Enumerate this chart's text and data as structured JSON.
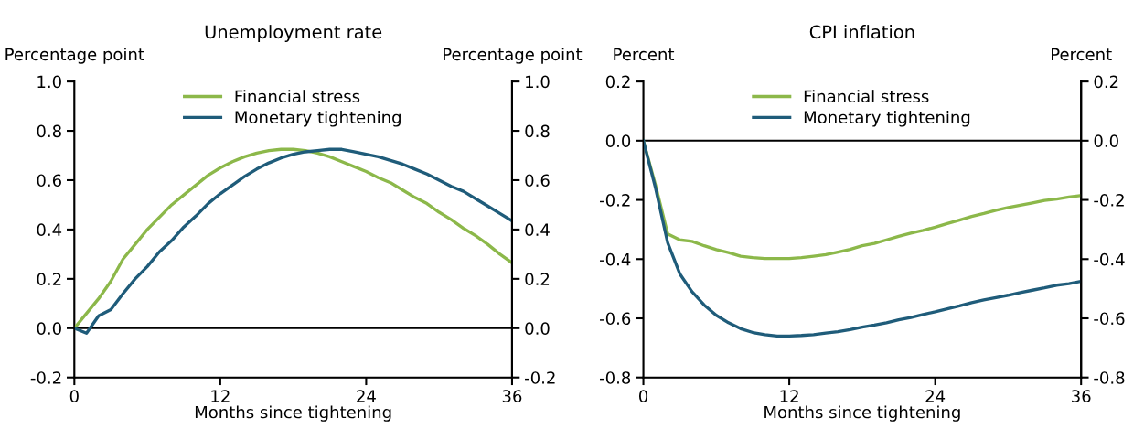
{
  "chart_data": [
    {
      "type": "line",
      "title": "Unemployment rate",
      "ylabel": "Percentage point",
      "y2label": "Percentage point",
      "xlabel": "Months since tightening",
      "x": [
        0,
        1,
        2,
        3,
        4,
        5,
        6,
        7,
        8,
        9,
        10,
        11,
        12,
        13,
        14,
        15,
        16,
        17,
        18,
        19,
        20,
        21,
        22,
        23,
        24,
        25,
        26,
        27,
        28,
        29,
        30,
        31,
        32,
        33,
        34,
        35,
        36
      ],
      "series": [
        {
          "name": "Financial stress",
          "color": "#8cb84a",
          "values": [
            0.0,
            0.06,
            0.12,
            0.19,
            0.28,
            0.34,
            0.4,
            0.45,
            0.5,
            0.54,
            0.58,
            0.62,
            0.65,
            0.675,
            0.695,
            0.71,
            0.72,
            0.725,
            0.725,
            0.72,
            0.71,
            0.695,
            0.675,
            0.655,
            0.635,
            0.61,
            0.59,
            0.56,
            0.53,
            0.505,
            0.47,
            0.44,
            0.405,
            0.375,
            0.34,
            0.3,
            0.265
          ]
        },
        {
          "name": "Monetary tightening",
          "color": "#1f5c7a",
          "values": [
            0.0,
            -0.02,
            0.05,
            0.075,
            0.14,
            0.2,
            0.25,
            0.31,
            0.355,
            0.41,
            0.455,
            0.505,
            0.545,
            0.58,
            0.615,
            0.645,
            0.67,
            0.69,
            0.705,
            0.715,
            0.72,
            0.725,
            0.725,
            0.715,
            0.705,
            0.695,
            0.68,
            0.665,
            0.645,
            0.625,
            0.6,
            0.575,
            0.555,
            0.525,
            0.495,
            0.465,
            0.435
          ]
        }
      ],
      "xlim": [
        0,
        36
      ],
      "xticks": [
        0,
        12,
        24,
        36
      ],
      "ylim": [
        -0.2,
        1.0
      ],
      "yticks": [
        {
          "value": -0.2,
          "label": "-0.2"
        },
        {
          "value": 0,
          "label": "0.0"
        },
        {
          "value": 0.2,
          "label": "0.2"
        },
        {
          "value": 0.4,
          "label": "0.4"
        },
        {
          "value": 0.6,
          "label": "0.6"
        },
        {
          "value": 0.8,
          "label": "0.8"
        },
        {
          "value": 1.0,
          "label": "1.0"
        }
      ],
      "y2lim": [
        -0.2,
        1.0
      ],
      "y2ticks": [
        {
          "value": -0.2,
          "label": "-0.2"
        },
        {
          "value": 0,
          "label": "0.0"
        },
        {
          "value": 0.2,
          "label": "0.2"
        },
        {
          "value": 0.4,
          "label": "0.4"
        },
        {
          "value": 0.6,
          "label": "0.6"
        },
        {
          "value": 0.8,
          "label": "0.8"
        },
        {
          "value": 1.0,
          "label": "1.0"
        }
      ],
      "ref_lines": [
        {
          "axis": "y",
          "value": 0,
          "color": "#000000"
        }
      ],
      "legend": "top",
      "grid": false,
      "marker": "none",
      "line_style": "solid"
    },
    {
      "type": "line",
      "title": "CPI inflation",
      "ylabel": "Percent",
      "y2label": "Percent",
      "xlabel": "Months since tightening",
      "x": [
        0,
        1,
        2,
        3,
        4,
        5,
        6,
        7,
        8,
        9,
        10,
        11,
        12,
        13,
        14,
        15,
        16,
        17,
        18,
        19,
        20,
        21,
        22,
        23,
        24,
        25,
        26,
        27,
        28,
        29,
        30,
        31,
        32,
        33,
        34,
        35,
        36
      ],
      "series": [
        {
          "name": "Financial stress",
          "color": "#8cb84a",
          "values": [
            0.0,
            -0.15,
            -0.315,
            -0.335,
            -0.34,
            -0.355,
            -0.368,
            -0.378,
            -0.39,
            -0.395,
            -0.398,
            -0.398,
            -0.398,
            -0.395,
            -0.39,
            -0.385,
            -0.376,
            -0.367,
            -0.355,
            -0.347,
            -0.335,
            -0.323,
            -0.312,
            -0.303,
            -0.292,
            -0.28,
            -0.268,
            -0.256,
            -0.246,
            -0.235,
            -0.226,
            -0.218,
            -0.21,
            -0.202,
            -0.197,
            -0.19,
            -0.185
          ]
        },
        {
          "name": "Monetary tightening",
          "color": "#1f5c7a",
          "values": [
            0.0,
            -0.16,
            -0.345,
            -0.45,
            -0.51,
            -0.555,
            -0.59,
            -0.615,
            -0.635,
            -0.648,
            -0.655,
            -0.66,
            -0.66,
            -0.658,
            -0.655,
            -0.65,
            -0.645,
            -0.638,
            -0.63,
            -0.623,
            -0.615,
            -0.605,
            -0.597,
            -0.587,
            -0.578,
            -0.568,
            -0.558,
            -0.547,
            -0.538,
            -0.53,
            -0.522,
            -0.513,
            -0.505,
            -0.497,
            -0.488,
            -0.483,
            -0.475
          ]
        }
      ],
      "xlim": [
        0,
        36
      ],
      "xticks": [
        0,
        12,
        24,
        36
      ],
      "ylim": [
        -0.8,
        0.2
      ],
      "yticks": [
        {
          "value": -0.8,
          "label": "-0.8"
        },
        {
          "value": -0.6,
          "label": "-0.6"
        },
        {
          "value": -0.4,
          "label": "-0.4"
        },
        {
          "value": -0.2,
          "label": "-0.2"
        },
        {
          "value": 0,
          "label": "0.0"
        },
        {
          "value": 0.2,
          "label": "0.2"
        }
      ],
      "y2lim": [
        -0.8,
        0.2
      ],
      "y2ticks": [
        {
          "value": -0.8,
          "label": "-0.8"
        },
        {
          "value": -0.6,
          "label": "-0.6"
        },
        {
          "value": -0.4,
          "label": "-0.4"
        },
        {
          "value": -0.2,
          "label": "-0.2"
        },
        {
          "value": 0,
          "label": "0.0"
        },
        {
          "value": 0.2,
          "label": "0.2"
        }
      ],
      "ref_lines": [
        {
          "axis": "y",
          "value": 0,
          "color": "#000000"
        }
      ],
      "legend": "top",
      "grid": false,
      "marker": "none",
      "line_style": "solid"
    }
  ]
}
